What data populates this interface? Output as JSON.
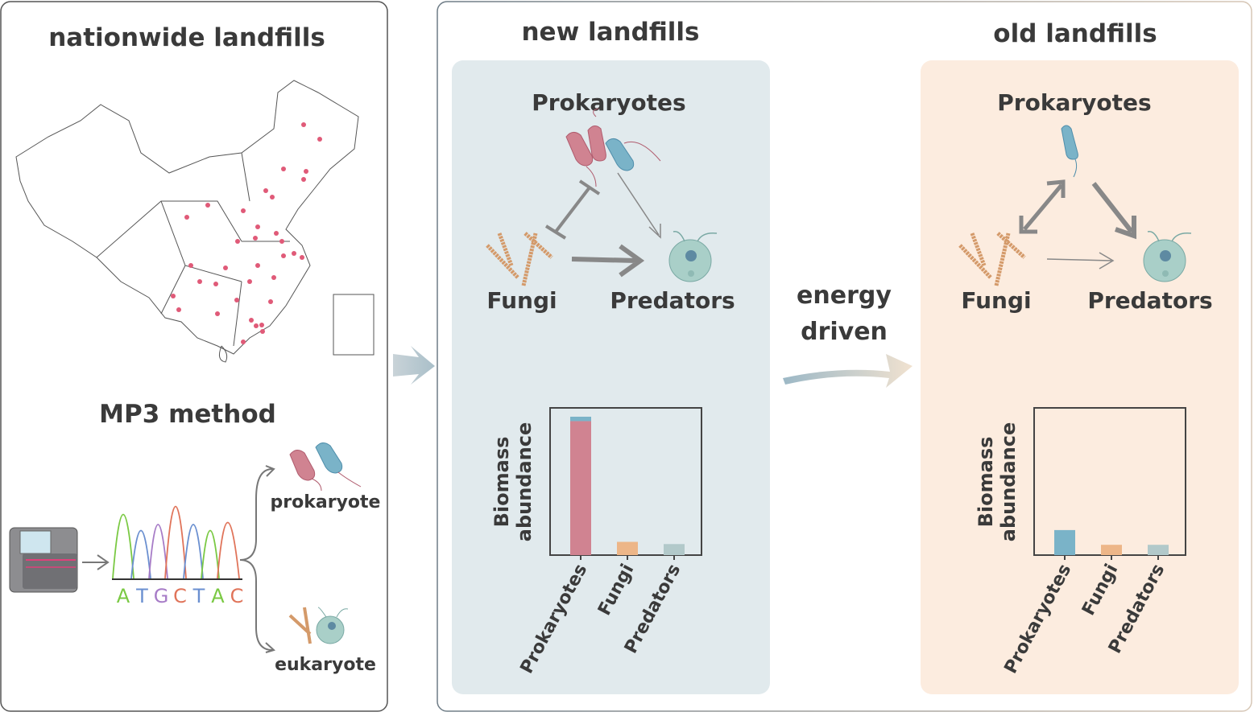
{
  "left_panel": {
    "title": "nationwide landfills",
    "method_title": "MP3 method",
    "sequence_letters": [
      "A",
      "T",
      "G",
      "C",
      "T",
      "A",
      "C"
    ],
    "sequence_colors": [
      "#7ac943",
      "#6a8fd0",
      "#a77cc7",
      "#e0745a",
      "#6a8fd0",
      "#7ac943",
      "#e0745a"
    ],
    "prokaryote_label": "prokaryote",
    "eukaryote_label": "eukaryote"
  },
  "new_panel": {
    "title": "new landfills",
    "prokaryotes": "Prokaryotes",
    "fungi": "Fungi",
    "predators": "Predators",
    "bg_color": "#e1eaed"
  },
  "transition": {
    "line1": "energy",
    "line2": "driven"
  },
  "old_panel": {
    "title": "old landfills",
    "prokaryotes": "Prokaryotes",
    "fungi": "Fungi",
    "predators": "Predators",
    "bg_color": "#fcecdf"
  },
  "colors": {
    "prokaryote_red": "#d08391",
    "prokaryote_blue": "#7ab3c8",
    "fungi": "#edb688",
    "predators": "#b2c9ca"
  },
  "chart_data": [
    {
      "type": "bar",
      "ylabel": [
        "Biomass",
        "abundance"
      ],
      "categories": [
        "Prokaryotes",
        "Fungi",
        "Predators"
      ],
      "series": [
        {
          "values": [
            0.91,
            0.09,
            0.075
          ]
        },
        {
          "values": [
            0.03,
            0,
            0
          ]
        }
      ],
      "ylim": [
        0,
        1
      ]
    },
    {
      "type": "bar",
      "ylabel": [
        "Biomass",
        "abundance"
      ],
      "categories": [
        "Prokaryotes",
        "Fungi",
        "Predators"
      ],
      "series": [
        {
          "values": [
            0.17,
            0.07,
            0.07
          ]
        }
      ],
      "ylim": [
        0,
        1
      ]
    }
  ]
}
